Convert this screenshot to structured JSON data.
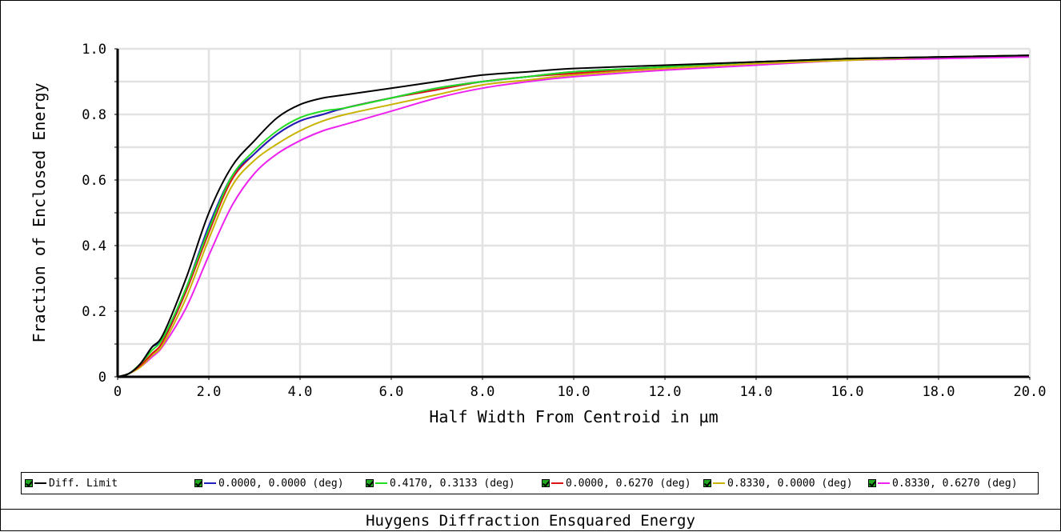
{
  "footer": {
    "title": "Huygens Diffraction Ensquared Energy"
  },
  "chart_data": {
    "type": "line",
    "title": "Huygens Diffraction Ensquared Energy",
    "xlabel": "Half Width From Centroid in µm",
    "ylabel": "Fraction of Enclosed Energy",
    "xlim": [
      0,
      20
    ],
    "ylim": [
      0,
      1
    ],
    "x_ticks": [
      "0",
      "2.0",
      "4.0",
      "6.0",
      "8.0",
      "10.0",
      "12.0",
      "14.0",
      "16.0",
      "18.0",
      "20.0"
    ],
    "y_ticks": [
      "0",
      "0.2",
      "0.4",
      "0.6",
      "0.8",
      "1.0"
    ],
    "grid": true,
    "legend_position": "bottom",
    "x": [
      0,
      0.25,
      0.5,
      0.75,
      1.0,
      1.5,
      2.0,
      2.5,
      3.0,
      3.5,
      4.0,
      4.5,
      5.0,
      6.0,
      7.0,
      8.0,
      9.0,
      10.0,
      12.0,
      14.0,
      16.0,
      18.0,
      20.0
    ],
    "series": [
      {
        "name": "Diff. Limit",
        "color": "#000000",
        "values": [
          0.0,
          0.01,
          0.04,
          0.09,
          0.13,
          0.3,
          0.5,
          0.64,
          0.72,
          0.79,
          0.83,
          0.85,
          0.86,
          0.88,
          0.9,
          0.92,
          0.93,
          0.94,
          0.95,
          0.96,
          0.97,
          0.975,
          0.98
        ]
      },
      {
        "name": "0.0000, 0.0000 (deg)",
        "color": "#1f1fbf",
        "values": [
          0.0,
          0.01,
          0.04,
          0.09,
          0.12,
          0.27,
          0.46,
          0.61,
          0.68,
          0.74,
          0.78,
          0.8,
          0.82,
          0.85,
          0.88,
          0.9,
          0.915,
          0.93,
          0.945,
          0.96,
          0.97,
          0.975,
          0.98
        ]
      },
      {
        "name": "0.4170, 0.3133 (deg)",
        "color": "#22dd22",
        "values": [
          0.0,
          0.01,
          0.04,
          0.08,
          0.12,
          0.27,
          0.45,
          0.61,
          0.69,
          0.75,
          0.79,
          0.81,
          0.82,
          0.85,
          0.88,
          0.9,
          0.915,
          0.93,
          0.945,
          0.96,
          0.97,
          0.975,
          0.98
        ]
      },
      {
        "name": "0.0000, 0.6270 (deg)",
        "color": "#dd1111",
        "values": [
          0.0,
          0.01,
          0.035,
          0.07,
          0.11,
          0.26,
          0.44,
          0.6,
          0.68,
          0.74,
          0.78,
          0.8,
          0.82,
          0.85,
          0.875,
          0.9,
          0.915,
          0.925,
          0.945,
          0.96,
          0.97,
          0.975,
          0.98
        ]
      },
      {
        "name": "0.8330, 0.0000 (deg)",
        "color": "#c8b400",
        "values": [
          0.0,
          0.01,
          0.03,
          0.065,
          0.1,
          0.24,
          0.42,
          0.58,
          0.66,
          0.71,
          0.75,
          0.78,
          0.8,
          0.83,
          0.86,
          0.89,
          0.905,
          0.92,
          0.94,
          0.955,
          0.965,
          0.975,
          0.98
        ]
      },
      {
        "name": "0.8330, 0.6270 (deg)",
        "color": "#ee22ee",
        "values": [
          0.0,
          0.01,
          0.03,
          0.06,
          0.095,
          0.21,
          0.37,
          0.52,
          0.62,
          0.68,
          0.72,
          0.75,
          0.77,
          0.81,
          0.85,
          0.88,
          0.9,
          0.915,
          0.935,
          0.95,
          0.965,
          0.97,
          0.975
        ]
      }
    ]
  }
}
